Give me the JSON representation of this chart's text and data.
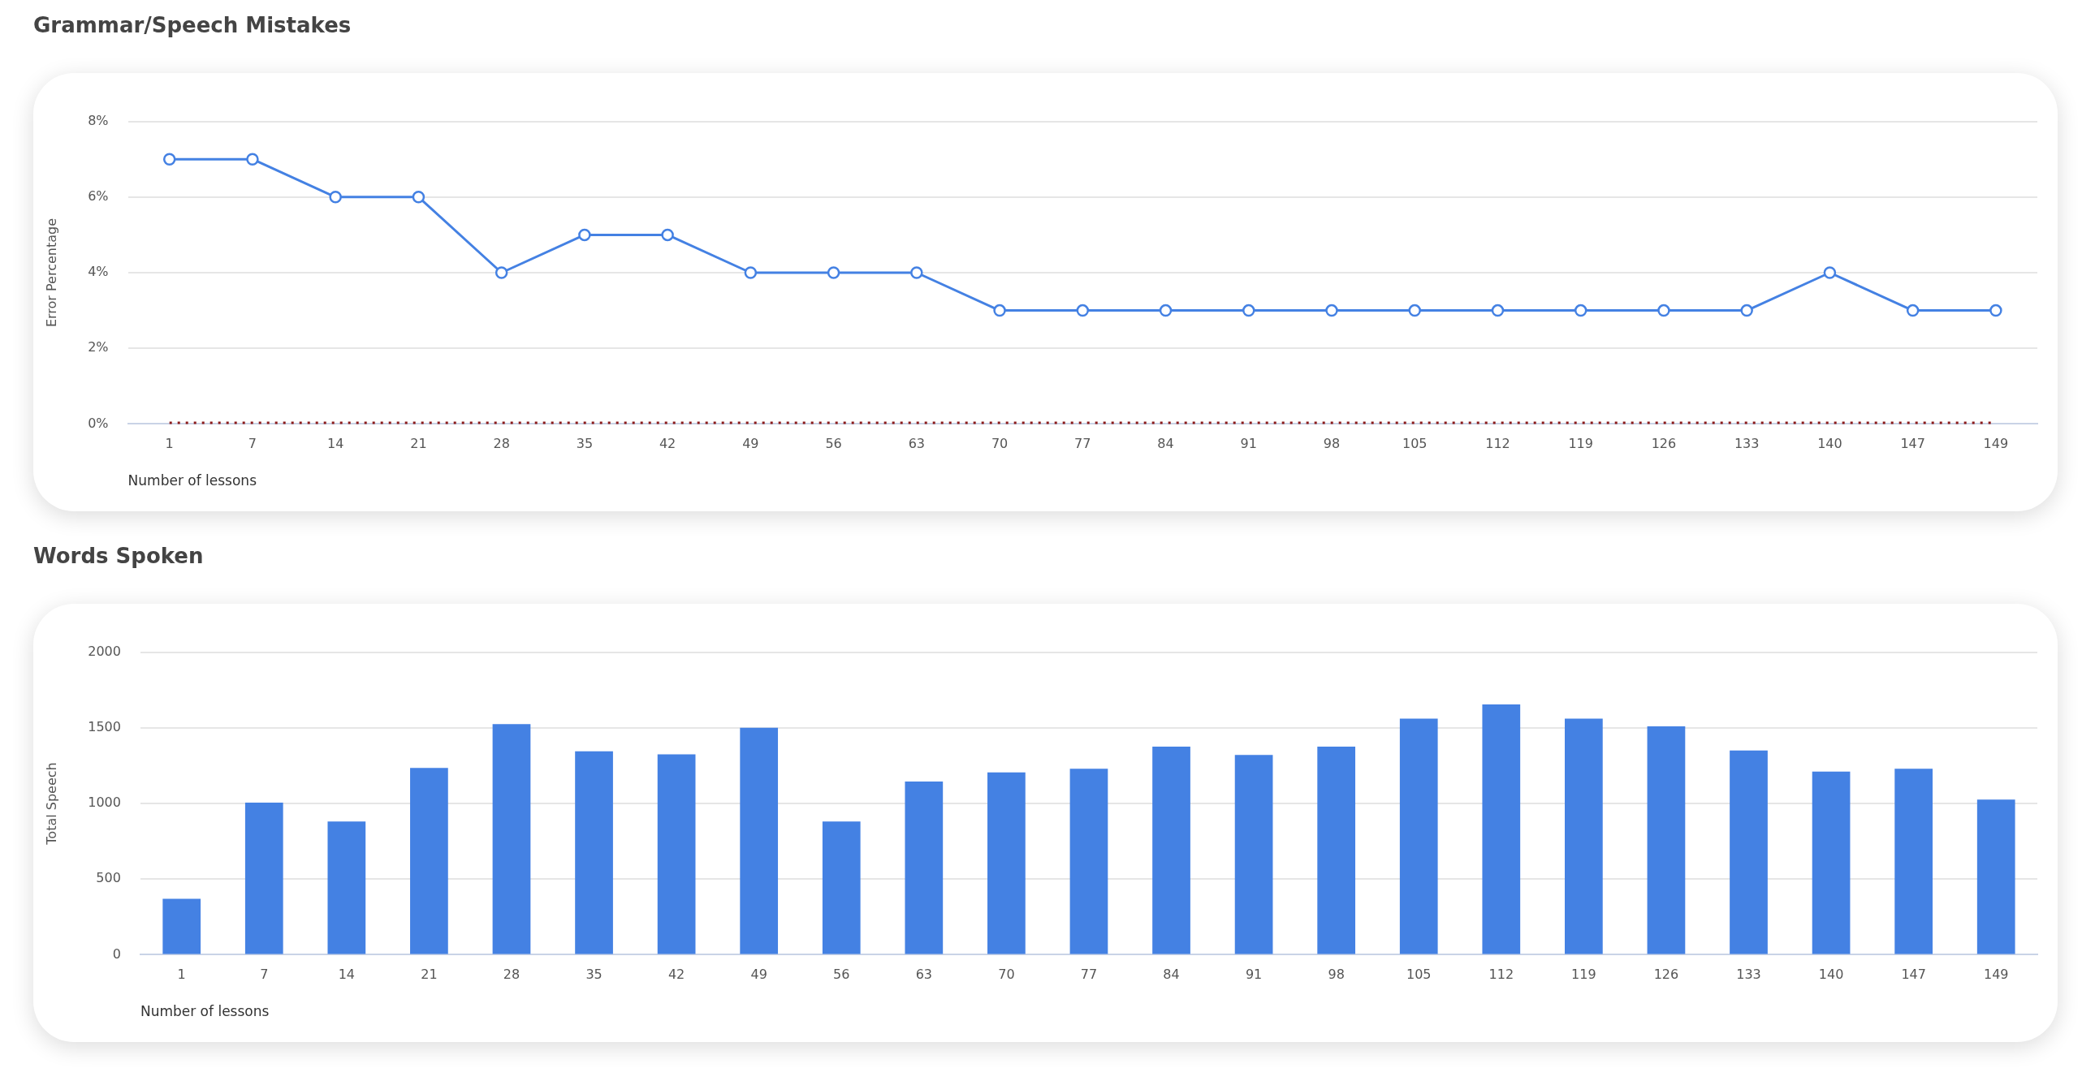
{
  "chart_data": [
    {
      "type": "line",
      "title": "Grammar/Speech Mistakes",
      "xlabel": "Number of lessons",
      "ylabel": "Error Percentage",
      "categories": [
        "1",
        "7",
        "14",
        "21",
        "28",
        "35",
        "42",
        "49",
        "56",
        "63",
        "70",
        "77",
        "84",
        "91",
        "98",
        "105",
        "112",
        "119",
        "126",
        "133",
        "140",
        "147",
        "149"
      ],
      "series": [
        {
          "color": "#4481e3",
          "values": [
            7,
            7,
            6,
            6,
            4,
            5,
            5,
            4,
            4,
            4,
            3,
            3,
            3,
            3,
            3,
            3,
            3,
            3,
            3,
            3,
            4,
            3,
            3
          ]
        }
      ],
      "ylim": [
        0,
        8
      ],
      "yticks": [
        {
          "value": 0,
          "label": "0%"
        },
        {
          "value": 2,
          "label": "2%"
        },
        {
          "value": 4,
          "label": "4%"
        },
        {
          "value": 6,
          "label": "6%"
        },
        {
          "value": 8,
          "label": "8%"
        }
      ],
      "grid": "y",
      "marker": "circle",
      "line_style": "solid",
      "legend": false,
      "ref_lines": [
        {
          "axis": "y",
          "value": 0,
          "color": "#8b1a1a",
          "line_style": "dotted"
        }
      ]
    },
    {
      "type": "bar",
      "title": "Words Spoken",
      "xlabel": "Number of lessons",
      "ylabel": "Total Speech",
      "categories": [
        "1",
        "7",
        "14",
        "21",
        "28",
        "35",
        "42",
        "49",
        "56",
        "63",
        "70",
        "77",
        "84",
        "91",
        "98",
        "105",
        "112",
        "119",
        "126",
        "133",
        "140",
        "147",
        "149"
      ],
      "series": [
        {
          "color": "#4481e3",
          "values": [
            370,
            1005,
            880,
            1235,
            1525,
            1345,
            1325,
            1500,
            880,
            1145,
            1205,
            1230,
            1375,
            1320,
            1375,
            1560,
            1655,
            1560,
            1510,
            1350,
            1210,
            1230,
            1025
          ]
        }
      ],
      "ylim": [
        0,
        2000
      ],
      "yticks": [
        0,
        500,
        1000,
        1500,
        2000
      ],
      "grid": "y",
      "legend": false
    }
  ]
}
